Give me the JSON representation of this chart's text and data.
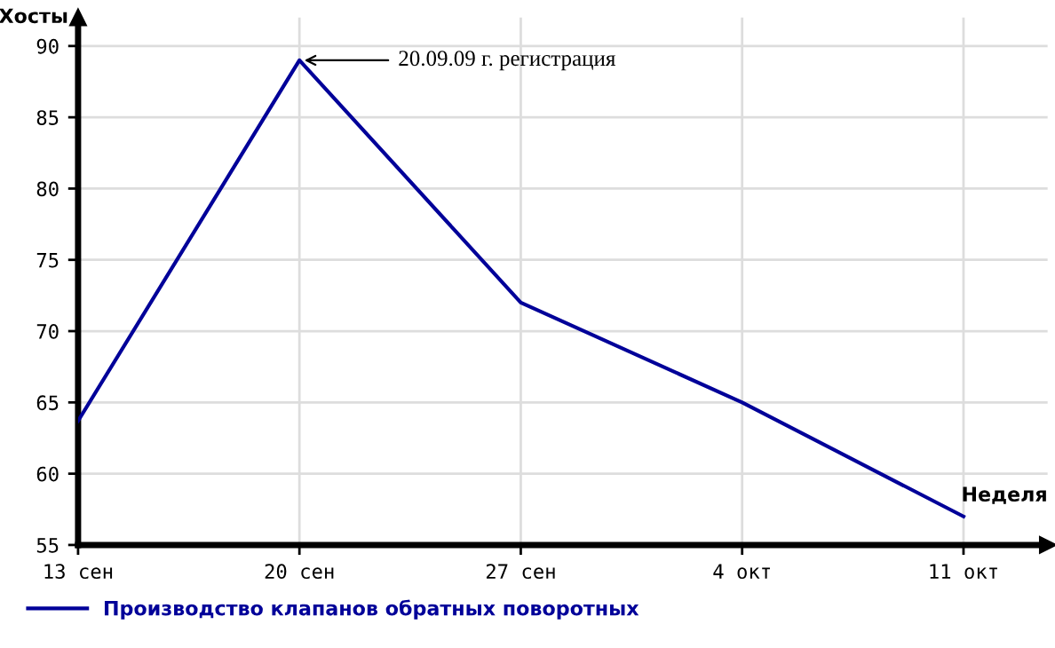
{
  "chart_data": {
    "type": "line",
    "xlabel": "Неделя",
    "ylabel": "Хосты",
    "categories": [
      "13 сен",
      "20 сен",
      "27 сен",
      "4 окт",
      "11 окт"
    ],
    "series": [
      {
        "name": "Производство клапанов обратных поворотных",
        "color": "#000099",
        "values": [
          63.7,
          89,
          72,
          65,
          57
        ]
      }
    ],
    "ylim": [
      55,
      92
    ],
    "yticks": [
      55,
      60,
      65,
      70,
      75,
      80,
      85,
      90
    ],
    "grid": true,
    "legend": "bottom left",
    "marker": "none",
    "line_style": "solid",
    "annotations": [
      {
        "text": "20.09.09 г. регистрация",
        "x": "20 сен",
        "y": 89
      }
    ]
  }
}
